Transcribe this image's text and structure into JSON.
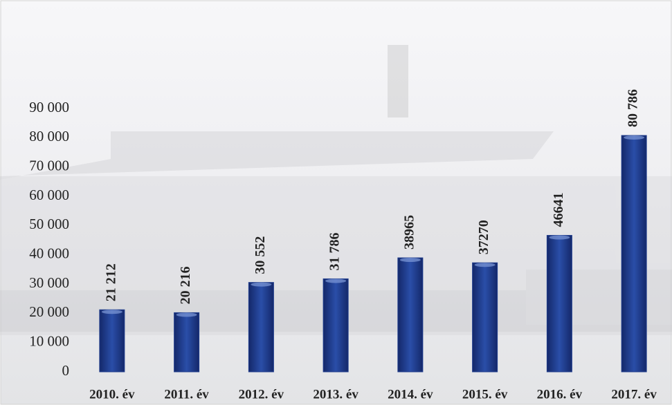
{
  "chart_data": {
    "type": "bar",
    "categories": [
      "2010. év",
      "2011. év",
      "2012. év",
      "2013. év",
      "2014. év",
      "2015. év",
      "2016. év",
      "2017. év"
    ],
    "values": [
      21212,
      20216,
      30552,
      31786,
      38965,
      37270,
      46641,
      80786
    ],
    "value_labels": [
      "21 212",
      "20 216",
      "30 552",
      "31 786",
      "38965",
      "37270",
      "46641",
      "80 786"
    ],
    "color": "#1f3c8c",
    "ylim": [
      0,
      90000
    ],
    "yticks": [
      0,
      {
        "value": 10000,
        "label": "10 000"
      },
      {
        "value": 20000,
        "label": "20 000"
      },
      {
        "value": 30000,
        "label": "30 000"
      },
      {
        "value": 40000,
        "label": "40 000"
      },
      {
        "value": 50000,
        "label": "50 000"
      },
      {
        "value": 60000,
        "label": "60 000"
      },
      {
        "value": 70000,
        "label": "70 000"
      },
      {
        "value": 80000,
        "label": "80 000"
      },
      {
        "value": 90000,
        "label": "90 000"
      }
    ],
    "grid": false
  }
}
